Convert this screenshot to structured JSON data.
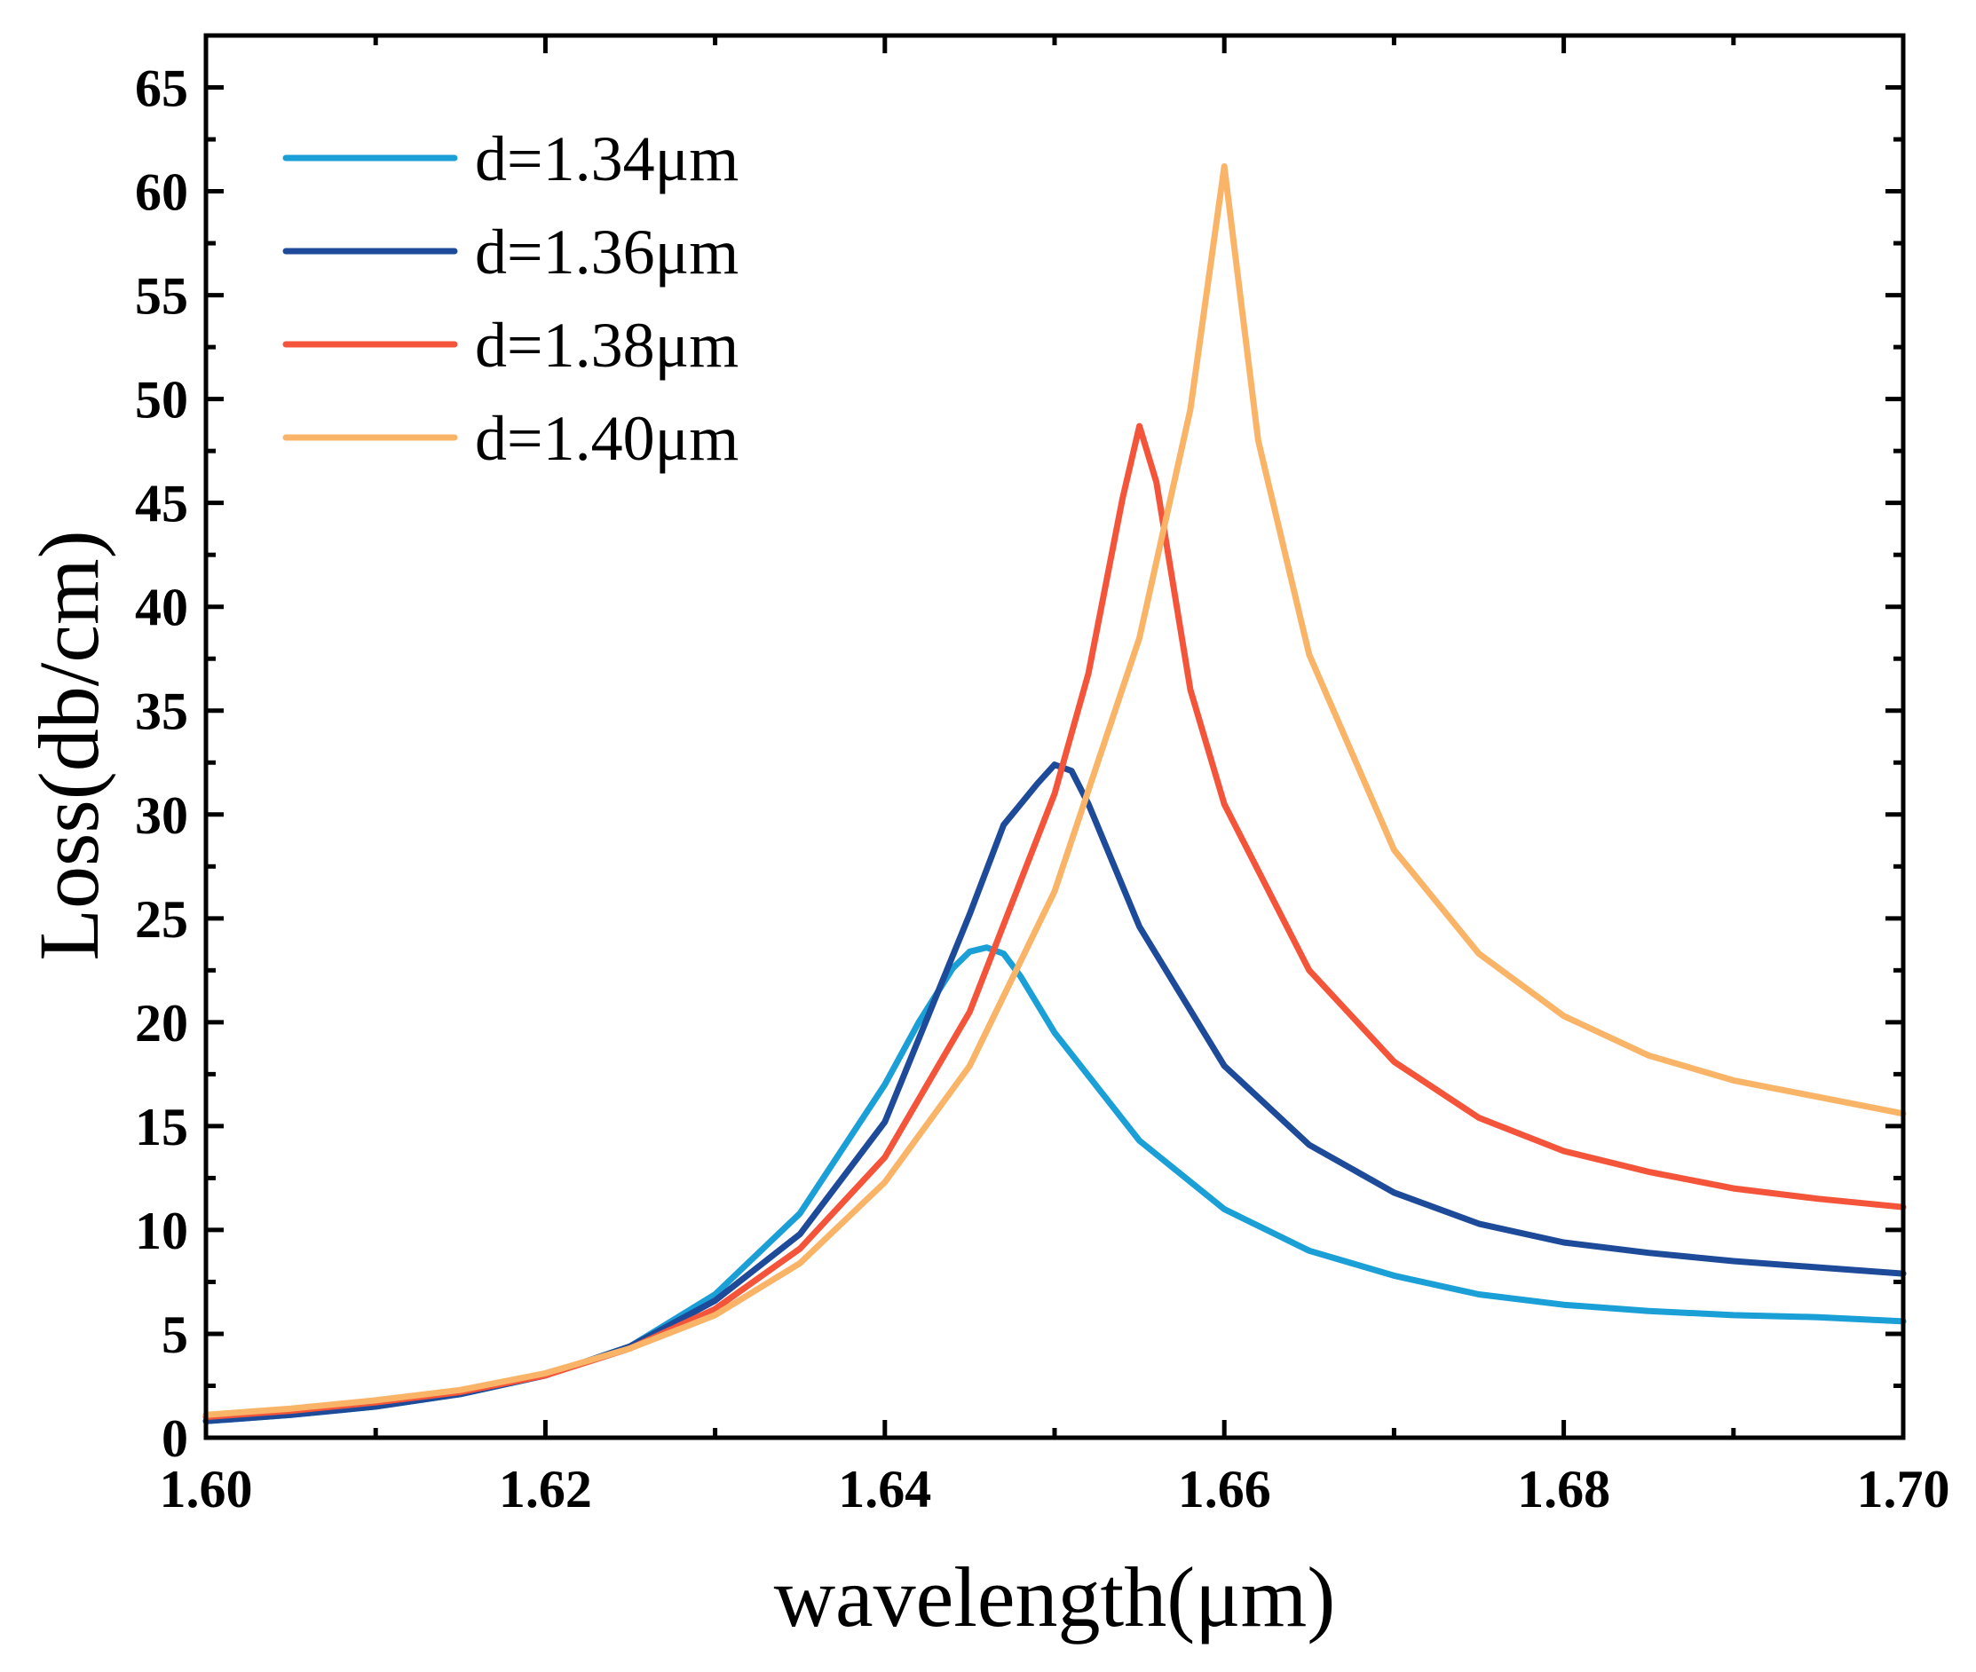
{
  "chart_data": {
    "type": "line",
    "title": "",
    "xlabel": "wavelength(μm)",
    "ylabel": "Loss(db/cm)",
    "xlim": [
      1.6,
      1.7
    ],
    "ylim": [
      0,
      67.5
    ],
    "xticks": [
      1.6,
      1.62,
      1.64,
      1.66,
      1.68,
      1.7
    ],
    "xtick_labels": [
      "1.60",
      "1.62",
      "1.64",
      "1.66",
      "1.68",
      "1.70"
    ],
    "yticks": [
      0,
      5,
      10,
      15,
      20,
      25,
      30,
      35,
      40,
      45,
      50,
      55,
      60,
      65
    ],
    "ytick_labels": [
      "0",
      "5",
      "10",
      "15",
      "20",
      "25",
      "30",
      "35",
      "40",
      "45",
      "50",
      "55",
      "60",
      "65"
    ],
    "grid": false,
    "legend_position": "top-left",
    "series": [
      {
        "name": "d=1.34μm",
        "color": "#1a9fd6",
        "x": [
          1.6,
          1.605,
          1.61,
          1.615,
          1.62,
          1.625,
          1.63,
          1.635,
          1.64,
          1.642,
          1.644,
          1.645,
          1.646,
          1.647,
          1.648,
          1.65,
          1.655,
          1.66,
          1.665,
          1.67,
          1.675,
          1.68,
          1.685,
          1.69,
          1.695,
          1.7
        ],
        "y": [
          0.8,
          1.1,
          1.5,
          2.1,
          3.0,
          4.4,
          6.9,
          10.8,
          17.0,
          20.0,
          22.6,
          23.4,
          23.6,
          23.3,
          22.2,
          19.5,
          14.3,
          11.0,
          9.0,
          7.8,
          6.9,
          6.4,
          6.1,
          5.9,
          5.8,
          5.6
        ]
      },
      {
        "name": "d=1.36μm",
        "color": "#1e4b99",
        "x": [
          1.6,
          1.605,
          1.61,
          1.615,
          1.62,
          1.625,
          1.63,
          1.635,
          1.64,
          1.645,
          1.647,
          1.649,
          1.65,
          1.651,
          1.652,
          1.655,
          1.66,
          1.665,
          1.67,
          1.675,
          1.68,
          1.685,
          1.69,
          1.695,
          1.7
        ],
        "y": [
          0.8,
          1.1,
          1.5,
          2.1,
          3.0,
          4.4,
          6.6,
          9.8,
          15.2,
          25.2,
          29.5,
          31.5,
          32.4,
          32.1,
          30.5,
          24.6,
          17.9,
          14.1,
          11.8,
          10.3,
          9.4,
          8.9,
          8.5,
          8.2,
          7.9
        ]
      },
      {
        "name": "d=1.38μm",
        "color": "#f4553a",
        "x": [
          1.6,
          1.605,
          1.61,
          1.615,
          1.62,
          1.625,
          1.63,
          1.635,
          1.64,
          1.645,
          1.65,
          1.652,
          1.654,
          1.655,
          1.656,
          1.658,
          1.66,
          1.665,
          1.67,
          1.675,
          1.68,
          1.685,
          1.69,
          1.695,
          1.7
        ],
        "y": [
          1.0,
          1.3,
          1.7,
          2.2,
          3.0,
          4.3,
          6.2,
          9.1,
          13.5,
          20.5,
          31.0,
          36.8,
          45.2,
          48.7,
          46.0,
          36.0,
          30.5,
          22.5,
          18.1,
          15.4,
          13.8,
          12.8,
          12.0,
          11.5,
          11.1
        ]
      },
      {
        "name": "d=1.40μm",
        "color": "#f9b468",
        "x": [
          1.6,
          1.605,
          1.61,
          1.615,
          1.62,
          1.625,
          1.63,
          1.635,
          1.64,
          1.645,
          1.65,
          1.655,
          1.658,
          1.66,
          1.662,
          1.665,
          1.67,
          1.675,
          1.68,
          1.685,
          1.69,
          1.695,
          1.7
        ],
        "y": [
          1.1,
          1.4,
          1.8,
          2.3,
          3.1,
          4.3,
          5.9,
          8.4,
          12.3,
          17.9,
          26.3,
          38.5,
          49.5,
          61.2,
          48.0,
          37.7,
          28.3,
          23.3,
          20.3,
          18.4,
          17.2,
          16.4,
          15.6
        ]
      }
    ]
  }
}
